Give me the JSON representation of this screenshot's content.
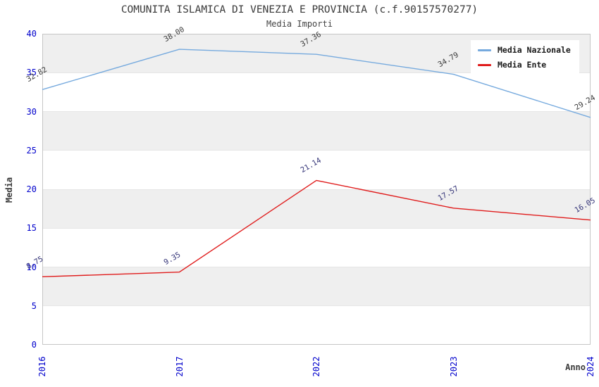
{
  "chart_data": {
    "type": "line",
    "title": "COMUNITA ISLAMICA DI VENEZIA E PROVINCIA (c.f.90157570277)",
    "subtitle": "Media Importi",
    "xlabel": "Anno",
    "ylabel": "Media",
    "categories": [
      "2016",
      "2017",
      "2022",
      "2023",
      "2024"
    ],
    "series": [
      {
        "name": "Media Nazionale",
        "color": "#76aade",
        "label_color": "#3a3a3a",
        "values": [
          32.82,
          38.0,
          37.36,
          34.79,
          29.24
        ]
      },
      {
        "name": "Media Ente",
        "color": "#e01c1c",
        "label_color": "#333377",
        "values": [
          8.75,
          9.35,
          21.14,
          17.57,
          16.05
        ]
      }
    ],
    "ylim": [
      0,
      40
    ],
    "ytick_step": 5,
    "grid": "horizontal-bands",
    "band_color": "#efefef",
    "tick_label_color": "#0000cc",
    "legend_position": "top-right"
  }
}
